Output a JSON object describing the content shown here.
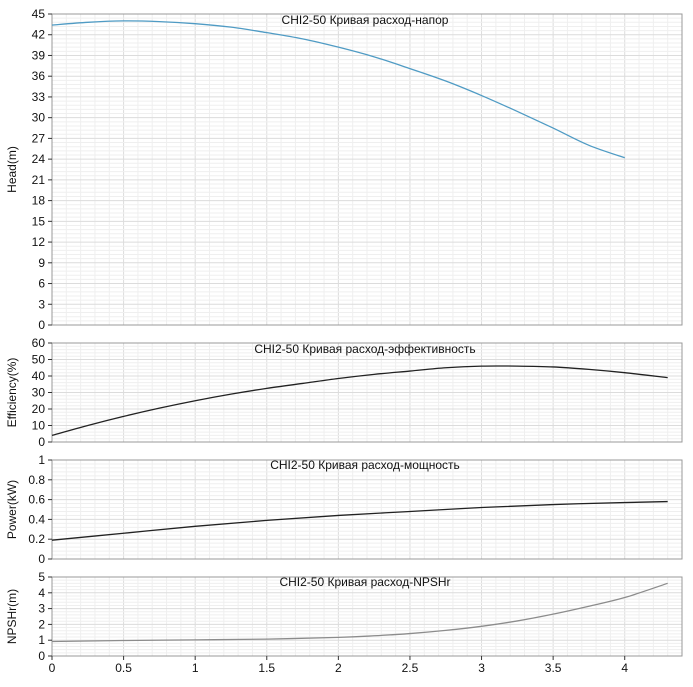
{
  "chart_data": [
    {
      "type": "line",
      "title": "CHI2-50 Кривая расход-напор",
      "xlabel": "",
      "ylabel": "Head(m)",
      "xlim": [
        0,
        4.4
      ],
      "ylim": [
        0,
        45
      ],
      "yticks": [
        0,
        3,
        6,
        9,
        12,
        15,
        18,
        21,
        24,
        27,
        30,
        33,
        36,
        39,
        42,
        45
      ],
      "grid": true,
      "line_color": "#4f9bc4",
      "series": [
        {
          "x": [
            0,
            0.25,
            0.5,
            0.75,
            1.0,
            1.25,
            1.5,
            1.75,
            2.0,
            2.25,
            2.5,
            2.75,
            3.0,
            3.25,
            3.5,
            3.75,
            4.0
          ],
          "y": [
            43.4,
            43.8,
            44.0,
            43.9,
            43.6,
            43.1,
            42.3,
            41.4,
            40.2,
            38.8,
            37.1,
            35.3,
            33.2,
            30.9,
            28.5,
            26.0,
            24.2
          ]
        }
      ]
    },
    {
      "type": "line",
      "title": "CHI2-50 Кривая расход-эффективность",
      "xlabel": "",
      "ylabel": "Efficiency(%)",
      "xlim": [
        0,
        4.4
      ],
      "ylim": [
        0,
        60
      ],
      "yticks": [
        0,
        10,
        20,
        30,
        40,
        50,
        60
      ],
      "grid": true,
      "line_color": "#222222",
      "series": [
        {
          "x": [
            0,
            0.25,
            0.5,
            0.75,
            1.0,
            1.25,
            1.5,
            1.75,
            2.0,
            2.25,
            2.5,
            2.75,
            3.0,
            3.25,
            3.5,
            3.75,
            4.0,
            4.3
          ],
          "y": [
            4,
            10,
            15.5,
            20.5,
            25,
            29,
            32.5,
            35.5,
            38.5,
            41,
            43,
            45,
            46,
            46,
            45.5,
            44,
            42,
            39
          ]
        }
      ]
    },
    {
      "type": "line",
      "title": "CHI2-50 Кривая расход-мощность",
      "xlabel": "",
      "ylabel": "Power(kW)",
      "xlim": [
        0,
        4.4
      ],
      "ylim": [
        0,
        1
      ],
      "yticks": [
        0,
        0.2,
        0.4,
        0.6,
        0.8,
        1
      ],
      "grid": true,
      "line_color": "#222222",
      "series": [
        {
          "x": [
            0,
            0.5,
            1.0,
            1.5,
            2.0,
            2.5,
            3.0,
            3.5,
            4.0,
            4.3
          ],
          "y": [
            0.19,
            0.26,
            0.33,
            0.39,
            0.44,
            0.48,
            0.52,
            0.55,
            0.57,
            0.58
          ]
        }
      ]
    },
    {
      "type": "line",
      "title": "CHI2-50 Кривая расход-NPSHr",
      "xlabel": "",
      "ylabel": "NPSHr(m)",
      "xlim": [
        0,
        4.4
      ],
      "ylim": [
        0,
        5
      ],
      "yticks": [
        0,
        1,
        2,
        3,
        4,
        5
      ],
      "xticks": [
        0,
        0.5,
        1,
        1.5,
        2,
        2.5,
        3,
        3.5,
        4
      ],
      "grid": true,
      "line_color": "#8c8c8c",
      "series": [
        {
          "x": [
            0,
            0.5,
            1.0,
            1.5,
            2.0,
            2.25,
            2.5,
            2.75,
            3.0,
            3.25,
            3.5,
            3.75,
            4.0,
            4.3
          ],
          "y": [
            0.92,
            0.98,
            1.02,
            1.07,
            1.18,
            1.28,
            1.42,
            1.62,
            1.88,
            2.22,
            2.65,
            3.15,
            3.7,
            4.6
          ]
        }
      ]
    }
  ]
}
